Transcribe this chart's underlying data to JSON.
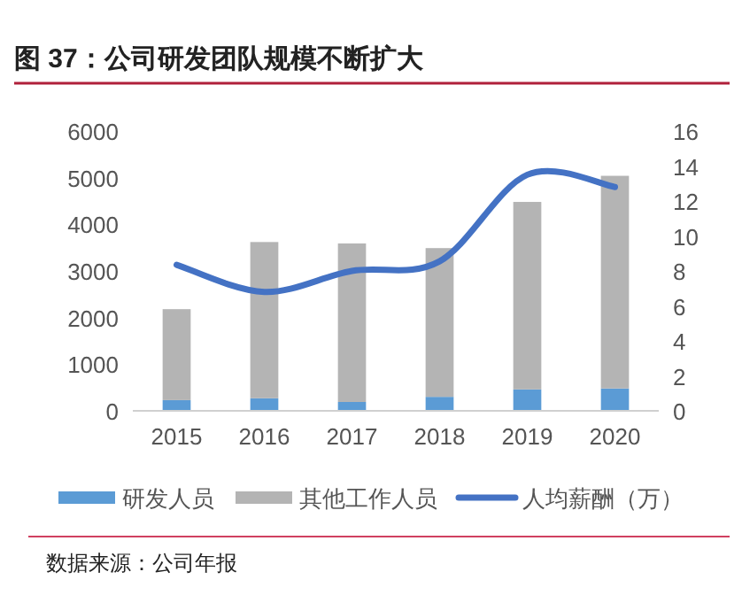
{
  "chart_data": {
    "type": "bar",
    "title": "图 37：公司研发团队规模不断扩大",
    "categories": [
      "2015",
      "2016",
      "2017",
      "2018",
      "2019",
      "2020"
    ],
    "stacked": true,
    "series": [
      {
        "name": "研发人员",
        "color": "#5b9bd5",
        "values": [
          230,
          270,
          190,
          300,
          460,
          480
        ]
      },
      {
        "name": "其他工作人员",
        "color": "#b4b4b4",
        "values": [
          1950,
          3350,
          3400,
          3190,
          4020,
          4560
        ]
      },
      {
        "name": "人均薪酬（万）",
        "type": "line",
        "axis": "y2",
        "color": "#4472c4",
        "values": [
          8.35,
          6.8,
          8.0,
          8.55,
          13.5,
          12.8
        ]
      }
    ],
    "ylim": [
      0,
      6000
    ],
    "yticks": [
      0,
      1000,
      2000,
      3000,
      4000,
      5000,
      6000
    ],
    "y2lim": [
      0,
      16
    ],
    "y2ticks": [
      0,
      2,
      4,
      6,
      8,
      10,
      12,
      14,
      16
    ],
    "grid": false,
    "legend": "bottom",
    "annotations": [
      "数据来源：公司年报"
    ]
  }
}
